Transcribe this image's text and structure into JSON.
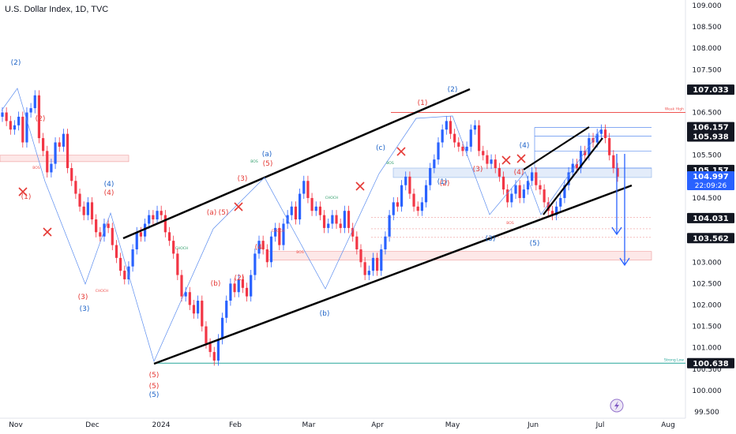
{
  "header": {
    "title": "U.S. Dollar Index, 1D, TVC"
  },
  "chart_data": {
    "type": "candlestick",
    "title": "U.S. Dollar Index, 1D, TVC",
    "ylim": [
      99.5,
      109.0
    ],
    "y_ticks": [
      "109.000",
      "108.500",
      "108.000",
      "107.500",
      "107.000",
      "106.500",
      "106.000",
      "105.500",
      "105.000",
      "104.500",
      "104.000",
      "103.500",
      "103.000",
      "102.500",
      "102.000",
      "101.500",
      "101.000",
      "100.500",
      "100.000",
      "99.500"
    ],
    "x_ticks": [
      "Nov",
      "Dec",
      "2024",
      "Feb",
      "Mar",
      "Apr",
      "May",
      "Jun",
      "Jul",
      "Aug"
    ],
    "price_tags": [
      {
        "value": 107.033,
        "label": "107.033",
        "style": "dark"
      },
      {
        "value": 106.157,
        "label": "106.157",
        "style": "dark"
      },
      {
        "value": 105.938,
        "label": "105.938",
        "style": "dark"
      },
      {
        "value": 105.157,
        "label": "105.157",
        "style": "dark"
      },
      {
        "value": 104.997,
        "label": "104.997",
        "sub": "22:09:26",
        "style": "blue"
      },
      {
        "value": 104.031,
        "label": "104.031",
        "style": "dark"
      },
      {
        "value": 103.562,
        "label": "103.562",
        "style": "dark"
      },
      {
        "value": 100.638,
        "label": "100.638",
        "style": "dark"
      }
    ],
    "levels": [
      {
        "value": 106.5,
        "label": "Weak High",
        "color": "#ef5350"
      },
      {
        "value": 100.638,
        "label": "Strong Low",
        "color": "#26a69a"
      }
    ],
    "closes": [
      106.5,
      106.3,
      106.1,
      106.2,
      106.4,
      105.8,
      106.5,
      106.6,
      106.9,
      105.9,
      105.6,
      105.1,
      105.3,
      105.8,
      105.7,
      106.0,
      105.2,
      104.9,
      104.6,
      104.3,
      104.1,
      104.4,
      104.0,
      103.7,
      103.6,
      103.9,
      103.8,
      103.4,
      103.1,
      102.8,
      102.6,
      102.9,
      103.3,
      103.7,
      103.6,
      103.9,
      104.1,
      104.0,
      104.2,
      104.1,
      103.7,
      103.5,
      103.2,
      102.7,
      102.2,
      102.3,
      102.0,
      101.8,
      102.1,
      101.5,
      101.1,
      100.9,
      100.7,
      101.2,
      101.7,
      102.1,
      102.5,
      102.3,
      102.6,
      102.4,
      102.2,
      102.7,
      103.2,
      103.5,
      103.3,
      103.0,
      103.6,
      103.8,
      103.4,
      103.9,
      104.1,
      104.3,
      104.0,
      104.6,
      104.9,
      104.5,
      104.2,
      104.3,
      104.1,
      103.8,
      103.9,
      104.1,
      103.9,
      103.8,
      104.2,
      103.8,
      103.6,
      103.3,
      103.0,
      102.7,
      102.8,
      103.1,
      102.8,
      103.3,
      103.6,
      104.1,
      104.4,
      104.3,
      104.8,
      105.0,
      104.6,
      104.3,
      104.2,
      104.4,
      104.8,
      105.2,
      105.4,
      105.8,
      106.1,
      106.3,
      106.0,
      105.8,
      105.7,
      105.6,
      105.7,
      106.1,
      106.2,
      105.6,
      105.5,
      105.3,
      105.4,
      105.2,
      105.0,
      104.7,
      104.4,
      104.6,
      104.8,
      104.5,
      104.7,
      104.9,
      105.1,
      104.8,
      104.7,
      104.4,
      104.2,
      104.1,
      104.3,
      104.5,
      104.8,
      105.1,
      105.3,
      105.2,
      105.6,
      105.5,
      105.9,
      105.8,
      106.0,
      106.1,
      105.9,
      105.5,
      105.2,
      105.0
    ],
    "wave_labels_red": [
      "(1)",
      "(2)",
      "(3)",
      "(4)",
      "(5)",
      "(a)",
      "(b)",
      "(2)",
      "(3)",
      "(4)",
      "(5)",
      "(1)",
      "(2)",
      "(3)",
      "(4)",
      "(5)",
      "(5)"
    ],
    "wave_labels_blue": [
      "(2)",
      "(3)",
      "(4)",
      "(5)",
      "(a)",
      "(b)",
      "(c)",
      "(1)",
      "(2)",
      "(3)",
      "(4)",
      "(5)"
    ],
    "markers": [
      "BOS",
      "CHOCH",
      "BOS",
      "CHOCH",
      "BOS",
      "CHOCH",
      "BOS",
      "BOS",
      "CHOCH"
    ]
  },
  "icons": {
    "flash": "lightning-icon"
  }
}
